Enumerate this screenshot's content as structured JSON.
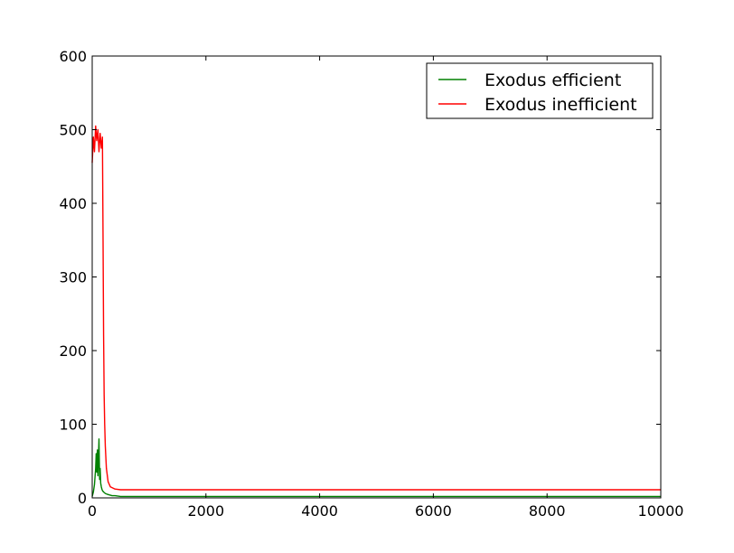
{
  "chart_data": {
    "type": "line",
    "title": "",
    "xlabel": "",
    "ylabel": "",
    "xlim": [
      0,
      10000
    ],
    "ylim": [
      0,
      600
    ],
    "xticks": [
      0,
      2000,
      4000,
      6000,
      8000,
      10000
    ],
    "yticks": [
      0,
      100,
      200,
      300,
      400,
      500,
      600
    ],
    "grid": false,
    "legend_position": "top-right",
    "series": [
      {
        "name": "Exodus efficient",
        "color": "#008000",
        "x": [
          0,
          20,
          40,
          60,
          70,
          80,
          90,
          100,
          110,
          120,
          130,
          140,
          150,
          160,
          170,
          180,
          200,
          230,
          260,
          300,
          350,
          400,
          500,
          700,
          1000,
          2000,
          4000,
          6000,
          8000,
          10000
        ],
        "y": [
          2,
          8,
          18,
          40,
          60,
          35,
          65,
          30,
          55,
          80,
          25,
          40,
          20,
          15,
          12,
          10,
          8,
          6,
          5,
          4,
          3,
          3,
          2,
          2,
          2,
          2,
          2,
          2,
          2,
          2
        ]
      },
      {
        "name": "Exodus inefficient",
        "color": "#ff0000",
        "x": [
          0,
          20,
          40,
          60,
          80,
          100,
          120,
          140,
          160,
          180,
          190,
          200,
          210,
          220,
          230,
          250,
          280,
          320,
          400,
          500,
          1000,
          2000,
          3000,
          4000,
          5000,
          6000,
          7000,
          8000,
          9000,
          10000
        ],
        "y": [
          455,
          490,
          470,
          505,
          485,
          500,
          470,
          495,
          475,
          490,
          350,
          220,
          140,
          100,
          70,
          40,
          22,
          15,
          12,
          11,
          11,
          11,
          11,
          11,
          11,
          11,
          11,
          11,
          11,
          11
        ]
      }
    ]
  }
}
